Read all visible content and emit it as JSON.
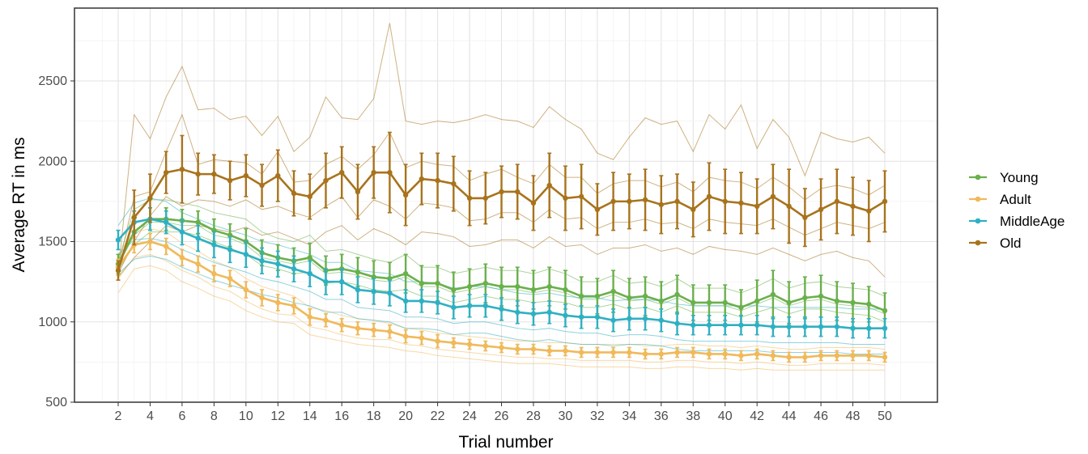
{
  "chart_data": {
    "type": "line",
    "title": "",
    "xlabel": "Trial number",
    "ylabel": "Average RT in ms",
    "xlim": [
      2,
      50
    ],
    "ylim": [
      500,
      2900
    ],
    "x_ticks": [
      2,
      4,
      6,
      8,
      10,
      12,
      14,
      16,
      18,
      20,
      22,
      24,
      26,
      28,
      30,
      32,
      34,
      36,
      38,
      40,
      42,
      44,
      46,
      48,
      50
    ],
    "y_ticks": [
      500,
      1000,
      1500,
      2000,
      2500
    ],
    "grid": true,
    "legend_position": "right",
    "x": [
      2,
      3,
      4,
      5,
      6,
      7,
      8,
      9,
      10,
      11,
      12,
      13,
      14,
      15,
      16,
      17,
      18,
      19,
      20,
      21,
      22,
      23,
      24,
      25,
      26,
      27,
      28,
      29,
      30,
      31,
      32,
      33,
      34,
      35,
      36,
      37,
      38,
      39,
      40,
      41,
      42,
      43,
      44,
      45,
      46,
      47,
      48,
      49,
      50
    ],
    "series": [
      {
        "name": "Young",
        "color": "#6ab04c",
        "values": [
          1360,
          1560,
          1640,
          1640,
          1630,
          1620,
          1570,
          1540,
          1500,
          1430,
          1400,
          1380,
          1400,
          1320,
          1330,
          1310,
          1280,
          1270,
          1300,
          1240,
          1240,
          1200,
          1220,
          1240,
          1220,
          1220,
          1200,
          1220,
          1200,
          1160,
          1160,
          1190,
          1150,
          1160,
          1130,
          1170,
          1120,
          1120,
          1120,
          1090,
          1130,
          1170,
          1120,
          1150,
          1160,
          1130,
          1120,
          1110,
          1070
        ],
        "err": [
          60,
          70,
          70,
          70,
          70,
          70,
          70,
          70,
          80,
          80,
          80,
          80,
          90,
          90,
          90,
          90,
          100,
          100,
          120,
          110,
          110,
          110,
          110,
          120,
          120,
          120,
          120,
          120,
          120,
          120,
          110,
          130,
          120,
          120,
          120,
          120,
          110,
          110,
          110,
          110,
          130,
          150,
          130,
          130,
          130,
          120,
          120,
          110,
          110
        ]
      },
      {
        "name": "Adult",
        "color": "#f0b95a",
        "values": [
          1340,
          1480,
          1500,
          1470,
          1400,
          1360,
          1300,
          1270,
          1200,
          1150,
          1120,
          1100,
          1030,
          1010,
          980,
          960,
          950,
          940,
          910,
          900,
          880,
          870,
          860,
          850,
          840,
          830,
          830,
          820,
          820,
          810,
          810,
          810,
          810,
          800,
          800,
          810,
          810,
          800,
          800,
          790,
          800,
          790,
          780,
          780,
          790,
          790,
          790,
          790,
          780
        ],
        "err": [
          50,
          50,
          50,
          50,
          50,
          50,
          50,
          50,
          50,
          50,
          50,
          50,
          50,
          40,
          40,
          40,
          40,
          40,
          40,
          40,
          40,
          30,
          30,
          30,
          30,
          30,
          30,
          30,
          30,
          30,
          30,
          30,
          30,
          30,
          30,
          30,
          30,
          30,
          30,
          30,
          30,
          30,
          30,
          30,
          30,
          30,
          30,
          30,
          30
        ]
      },
      {
        "name": "MiddleAge",
        "color": "#2fb0c2",
        "values": [
          1510,
          1620,
          1640,
          1620,
          1560,
          1520,
          1480,
          1450,
          1420,
          1380,
          1360,
          1330,
          1300,
          1250,
          1250,
          1200,
          1190,
          1180,
          1130,
          1130,
          1120,
          1090,
          1100,
          1100,
          1080,
          1060,
          1050,
          1060,
          1040,
          1030,
          1030,
          1010,
          1020,
          1020,
          1010,
          990,
          980,
          980,
          980,
          980,
          980,
          970,
          970,
          970,
          970,
          970,
          960,
          960,
          960
        ],
        "err": [
          60,
          70,
          70,
          70,
          80,
          80,
          80,
          80,
          80,
          80,
          80,
          80,
          80,
          80,
          80,
          80,
          80,
          80,
          70,
          70,
          70,
          70,
          70,
          70,
          70,
          70,
          70,
          70,
          70,
          70,
          70,
          70,
          70,
          70,
          70,
          70,
          60,
          60,
          60,
          60,
          60,
          60,
          60,
          60,
          60,
          60,
          60,
          60,
          60
        ]
      },
      {
        "name": "Old",
        "color": "#a8731c",
        "values": [
          1320,
          1650,
          1770,
          1930,
          1950,
          1920,
          1920,
          1880,
          1910,
          1850,
          1910,
          1800,
          1780,
          1880,
          1930,
          1810,
          1930,
          1930,
          1790,
          1890,
          1880,
          1860,
          1770,
          1770,
          1810,
          1810,
          1740,
          1850,
          1770,
          1780,
          1700,
          1750,
          1750,
          1760,
          1730,
          1750,
          1700,
          1780,
          1750,
          1740,
          1720,
          1780,
          1720,
          1650,
          1700,
          1750,
          1720,
          1690,
          1750
        ],
        "err": [
          60,
          170,
          150,
          130,
          210,
          130,
          120,
          120,
          130,
          130,
          160,
          140,
          140,
          170,
          160,
          170,
          160,
          250,
          190,
          160,
          170,
          170,
          170,
          160,
          160,
          170,
          170,
          200,
          200,
          200,
          160,
          180,
          170,
          190,
          180,
          170,
          170,
          210,
          200,
          190,
          170,
          200,
          230,
          180,
          190,
          200,
          180,
          190,
          190
        ]
      }
    ],
    "individual_traces": [
      {
        "group": "Old",
        "values": [
          1300,
          2290,
          2140,
          2400,
          2590,
          2320,
          2330,
          2260,
          2280,
          2160,
          2280,
          2060,
          2150,
          2400,
          2270,
          2260,
          2390,
          2860,
          2250,
          2230,
          2250,
          2240,
          2260,
          2290,
          2260,
          2250,
          2210,
          2340,
          2260,
          2200,
          2050,
          2010,
          2150,
          2270,
          2230,
          2250,
          2060,
          2290,
          2200,
          2350,
          2080,
          2260,
          2150,
          1910,
          2180,
          2140,
          2120,
          2150,
          2050
        ]
      },
      {
        "group": "Old",
        "values": [
          1330,
          1780,
          1810,
          2060,
          2290,
          1980,
          2010,
          2000,
          1990,
          1920,
          2060,
          1870,
          1880,
          1980,
          2030,
          1950,
          2040,
          2180,
          1960,
          2000,
          1980,
          1970,
          1880,
          1920,
          1950,
          1900,
          1860,
          1980,
          1900,
          1900,
          1800,
          1860,
          1880,
          1880,
          1840,
          1870,
          1810,
          1900,
          1880,
          1870,
          1830,
          1900,
          1840,
          1760,
          1830,
          1850,
          1830,
          1790,
          1850
        ]
      },
      {
        "group": "Old",
        "values": [
          1300,
          1500,
          1660,
          1780,
          1720,
          1760,
          1750,
          1720,
          1760,
          1700,
          1720,
          1680,
          1650,
          1720,
          1780,
          1650,
          1760,
          1720,
          1640,
          1740,
          1730,
          1710,
          1630,
          1640,
          1680,
          1680,
          1620,
          1700,
          1640,
          1650,
          1580,
          1620,
          1620,
          1640,
          1610,
          1620,
          1580,
          1640,
          1620,
          1610,
          1600,
          1640,
          1590,
          1540,
          1580,
          1620,
          1600,
          1580,
          1620
        ]
      },
      {
        "group": "Old",
        "values": [
          1280,
          1400,
          1500,
          1600,
          1560,
          1600,
          1580,
          1560,
          1590,
          1540,
          1560,
          1520,
          1480,
          1560,
          1600,
          1510,
          1580,
          1540,
          1480,
          1560,
          1550,
          1530,
          1470,
          1480,
          1510,
          1510,
          1460,
          1530,
          1470,
          1480,
          1420,
          1460,
          1460,
          1480,
          1440,
          1460,
          1420,
          1470,
          1450,
          1440,
          1420,
          1460,
          1420,
          1380,
          1420,
          1440,
          1400,
          1380,
          1280
        ]
      },
      {
        "group": "Young",
        "values": [
          1380,
          1700,
          1760,
          1760,
          1740,
          1720,
          1680,
          1660,
          1640,
          1560,
          1520,
          1500,
          1540,
          1440,
          1450,
          1420,
          1390,
          1370,
          1420,
          1340,
          1340,
          1300,
          1320,
          1340,
          1320,
          1320,
          1300,
          1330,
          1300,
          1250,
          1250,
          1290,
          1240,
          1250,
          1220,
          1270,
          1210,
          1210,
          1210,
          1180,
          1220,
          1270,
          1210,
          1240,
          1250,
          1220,
          1210,
          1200,
          1160
        ]
      },
      {
        "group": "Young",
        "values": [
          1320,
          1480,
          1560,
          1560,
          1560,
          1540,
          1500,
          1460,
          1420,
          1350,
          1330,
          1300,
          1310,
          1240,
          1250,
          1230,
          1200,
          1190,
          1200,
          1160,
          1160,
          1120,
          1140,
          1160,
          1140,
          1140,
          1120,
          1130,
          1120,
          1090,
          1090,
          1110,
          1080,
          1090,
          1060,
          1100,
          1060,
          1060,
          1060,
          1030,
          1060,
          1090,
          1050,
          1080,
          1080,
          1060,
          1050,
          1040,
          1000
        ]
      },
      {
        "group": "Young",
        "values": [
          1350,
          1540,
          1620,
          1620,
          1600,
          1600,
          1540,
          1520,
          1480,
          1400,
          1380,
          1360,
          1380,
          1300,
          1310,
          1290,
          1260,
          1250,
          1280,
          1220,
          1220,
          1180,
          1200,
          1220,
          1200,
          1200,
          1180,
          1200,
          1180,
          1140,
          1140,
          1170,
          1130,
          1140,
          1110,
          1150,
          1100,
          1100,
          1100,
          1070,
          1110,
          1150,
          1100,
          1130,
          1140,
          1110,
          1100,
          1090,
          1050
        ]
      },
      {
        "group": "Adult",
        "values": [
          1420,
          1560,
          1580,
          1560,
          1490,
          1440,
          1380,
          1340,
          1270,
          1220,
          1190,
          1160,
          1090,
          1070,
          1040,
          1020,
          1010,
          990,
          960,
          950,
          930,
          920,
          910,
          900,
          890,
          880,
          880,
          870,
          870,
          860,
          860,
          860,
          860,
          850,
          850,
          860,
          860,
          850,
          850,
          840,
          850,
          840,
          830,
          830,
          840,
          840,
          840,
          840,
          830
        ]
      },
      {
        "group": "Adult",
        "values": [
          1270,
          1400,
          1420,
          1380,
          1320,
          1280,
          1220,
          1190,
          1130,
          1080,
          1050,
          1040,
          970,
          950,
          920,
          900,
          890,
          890,
          860,
          850,
          830,
          820,
          810,
          800,
          790,
          780,
          780,
          770,
          770,
          760,
          760,
          760,
          760,
          750,
          750,
          760,
          760,
          750,
          750,
          740,
          750,
          740,
          730,
          730,
          740,
          740,
          740,
          740,
          730
        ]
      },
      {
        "group": "Adult",
        "values": [
          1180,
          1330,
          1350,
          1320,
          1250,
          1210,
          1160,
          1130,
          1070,
          1030,
          1000,
          990,
          920,
          900,
          880,
          860,
          850,
          840,
          820,
          810,
          790,
          780,
          770,
          760,
          750,
          740,
          740,
          740,
          730,
          720,
          720,
          720,
          720,
          710,
          710,
          720,
          720,
          710,
          710,
          700,
          710,
          700,
          700,
          700,
          700,
          700,
          700,
          700,
          700
        ]
      },
      {
        "group": "MiddleAge",
        "values": [
          1600,
          1740,
          1770,
          1750,
          1680,
          1640,
          1600,
          1570,
          1540,
          1500,
          1480,
          1450,
          1420,
          1370,
          1370,
          1320,
          1310,
          1300,
          1250,
          1250,
          1240,
          1210,
          1220,
          1220,
          1200,
          1180,
          1170,
          1180,
          1160,
          1150,
          1150,
          1130,
          1140,
          1140,
          1130,
          1110,
          1100,
          1100,
          1100,
          1100,
          1100,
          1090,
          1090,
          1090,
          1090,
          1090,
          1080,
          1080,
          1080
        ]
      },
      {
        "group": "MiddleAge",
        "values": [
          1420,
          1510,
          1520,
          1500,
          1450,
          1410,
          1370,
          1340,
          1310,
          1270,
          1250,
          1220,
          1190,
          1140,
          1140,
          1090,
          1080,
          1070,
          1030,
          1030,
          1020,
          990,
          1000,
          1000,
          980,
          960,
          950,
          960,
          940,
          930,
          930,
          910,
          920,
          920,
          910,
          890,
          880,
          880,
          880,
          880,
          880,
          870,
          870,
          870,
          870,
          870,
          860,
          860,
          860
        ]
      },
      {
        "group": "MiddleAge",
        "values": [
          1300,
          1390,
          1410,
          1390,
          1340,
          1300,
          1260,
          1230,
          1200,
          1170,
          1150,
          1120,
          1100,
          1060,
          1060,
          1020,
          1010,
          1000,
          960,
          960,
          950,
          920,
          930,
          930,
          910,
          890,
          880,
          890,
          870,
          860,
          860,
          850,
          860,
          860,
          850,
          830,
          820,
          820,
          820,
          820,
          820,
          810,
          810,
          810,
          810,
          810,
          800,
          800,
          800
        ]
      }
    ]
  }
}
